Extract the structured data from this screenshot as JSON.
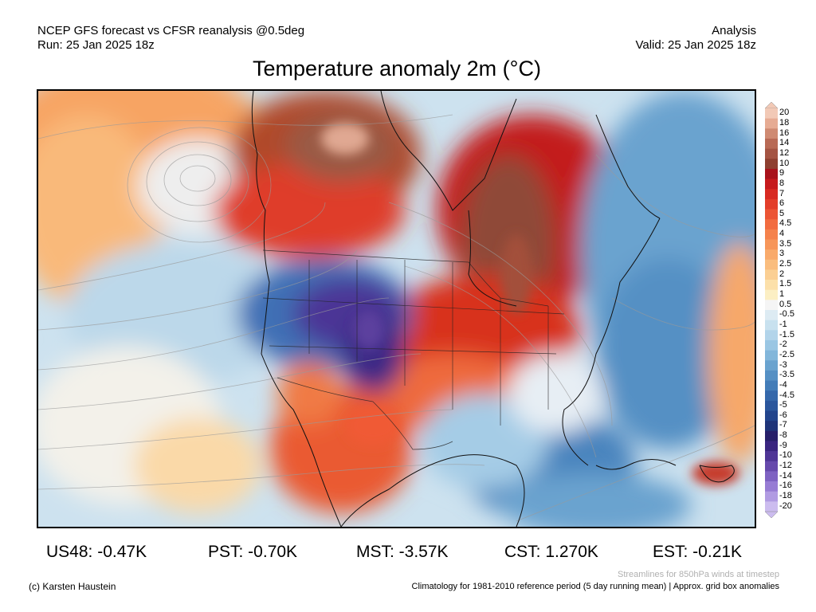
{
  "header": {
    "line1_left": "NCEP GFS forecast vs CFSR reanalysis @0.5deg",
    "line2_left": "Run: 25 Jan 2025 18z",
    "line1_right": "Analysis",
    "line2_right": "Valid: 25 Jan 2025 18z"
  },
  "title": "Temperature anomaly 2m (°C)",
  "legend": {
    "labels": [
      "20",
      "18",
      "16",
      "14",
      "12",
      "10",
      "9",
      "8",
      "7",
      "6",
      "5",
      "4.5",
      "4",
      "3.5",
      "3",
      "2.5",
      "2",
      "1.5",
      "1",
      "0.5",
      "-0.5",
      "-1",
      "-1.5",
      "-2",
      "-2.5",
      "-3",
      "-3.5",
      "-4",
      "-4.5",
      "-5",
      "-6",
      "-7",
      "-8",
      "-9",
      "-10",
      "-12",
      "-14",
      "-16",
      "-18",
      "-20"
    ],
    "colors": [
      "#f2c9b6",
      "#e6ab93",
      "#cf8a72",
      "#b86a55",
      "#a45443",
      "#8e3f30",
      "#a8121b",
      "#c61a1d",
      "#d82a22",
      "#e33e2a",
      "#ec5535",
      "#f26c40",
      "#f5824c",
      "#f7965a",
      "#f9aa6b",
      "#fabd7e",
      "#fbcf93",
      "#fce0aa",
      "#fcefc4",
      "#f5f5f5",
      "#ddebf3",
      "#c8e1ef",
      "#b2d4ea",
      "#9ac6e3",
      "#82b6da",
      "#6aa3cf",
      "#5590c4",
      "#437cb8",
      "#3568ab",
      "#2a569c",
      "#22448c",
      "#1f3479",
      "#271f6a",
      "#3a2580",
      "#4f3596",
      "#6649ac",
      "#7e62c2",
      "#977cd4",
      "#b19be2",
      "#ccbcef"
    ]
  },
  "stats": [
    {
      "region": "US48",
      "text": "US48: -0.47K"
    },
    {
      "region": "PST",
      "text": "PST: -0.70K"
    },
    {
      "region": "MST",
      "text": "MST: -3.57K"
    },
    {
      "region": "CST",
      "text": "CST: 1.270K"
    },
    {
      "region": "EST",
      "text": "EST: -0.21K"
    }
  ],
  "footer": {
    "streamlines_note": "Streamlines for 850hPa winds at timestep",
    "credit": "(c) Karsten Haustein",
    "climatology_note": "Climatology for 1981-2010 reference period (5 day running mean) | Approx. grid box anomalies"
  },
  "map": {
    "region": "North America",
    "variable": "2m temperature anomaly",
    "overlay": "850hPa wind streamlines"
  }
}
